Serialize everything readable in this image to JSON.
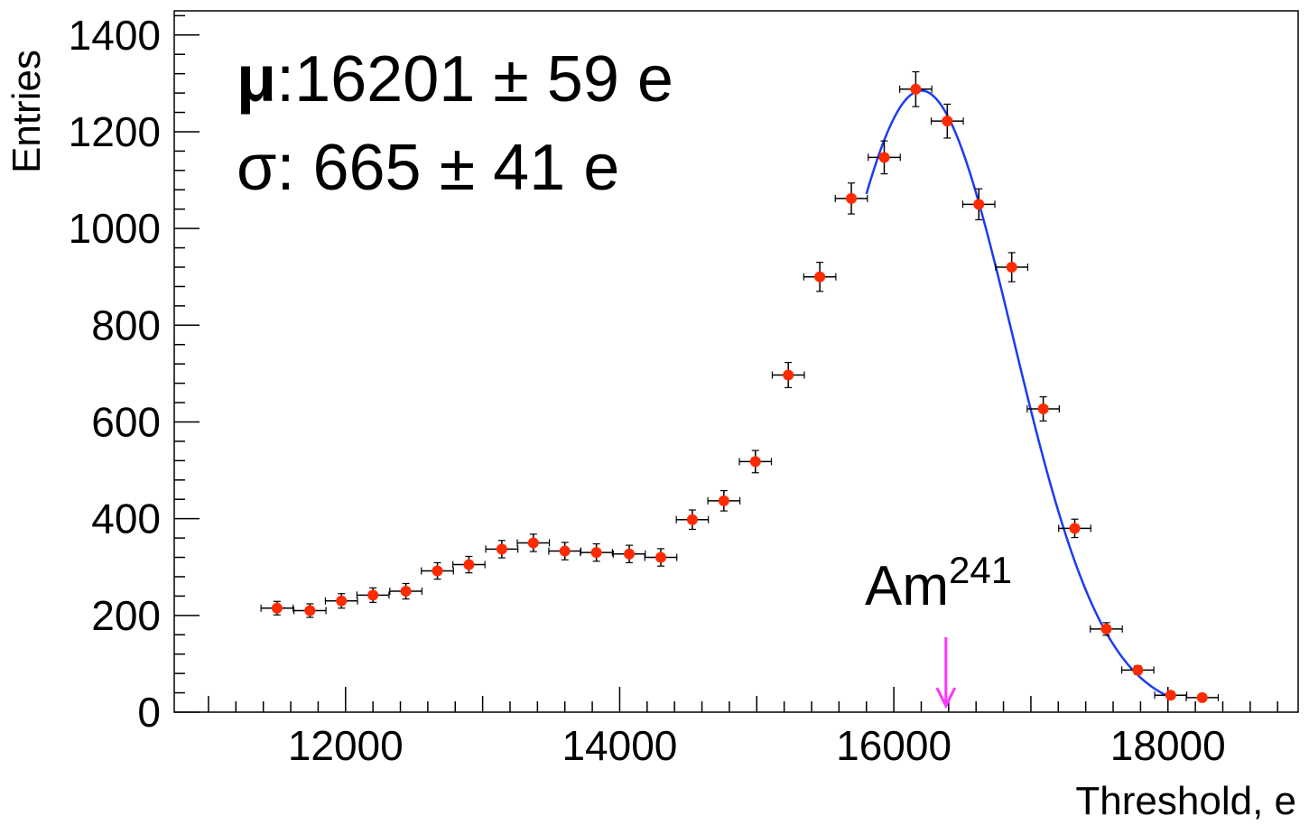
{
  "chart_data": {
    "type": "scatter",
    "xlabel": "Threshold, e",
    "ylabel": "Entries",
    "xlim": [
      10750,
      18950
    ],
    "ylim": [
      0,
      1450
    ],
    "x_ticks": [
      12000,
      14000,
      16000,
      18000
    ],
    "y_ticks": [
      0,
      200,
      400,
      600,
      800,
      1000,
      1200,
      1400
    ],
    "grid": false,
    "colors": {
      "points": "#ff2a00",
      "fit": "#1a3cf0",
      "arrow": "#ff33ff",
      "error_bars": "#000000"
    },
    "bin_half_width": 117,
    "series": [
      {
        "x": [
          11500,
          11740,
          11970,
          12200,
          12440,
          12670,
          12900,
          13140,
          13370,
          13600,
          13830,
          14070,
          14300,
          14530,
          14760,
          14990,
          15230,
          15460,
          15690,
          15930,
          16160,
          16390,
          16620,
          16860,
          17090,
          17320,
          17550,
          17780,
          18020,
          18250
        ],
        "y": [
          215,
          210,
          230,
          242,
          250,
          292,
          305,
          337,
          350,
          333,
          330,
          327,
          320,
          398,
          437,
          518,
          697,
          900,
          1062,
          1147,
          1288,
          1222,
          1050,
          920,
          627,
          380,
          172,
          87,
          35,
          30
        ],
        "yerr": [
          14,
          14,
          15,
          15,
          16,
          17,
          17,
          18,
          18,
          18,
          18,
          18,
          18,
          20,
          21,
          23,
          26,
          30,
          32,
          34,
          36,
          35,
          32,
          30,
          25,
          19,
          13,
          9,
          6,
          5
        ]
      }
    ],
    "fit": {
      "function": "gaussian",
      "mu": 16201,
      "sigma": 665,
      "amplitude": 1285,
      "x_range": [
        15800,
        18000
      ]
    },
    "stats": {
      "mu_label": "μ",
      "mu_text": ":16201 ± 59 e",
      "sigma_text": "σ: 665 ± 41 e"
    },
    "annotation": {
      "text": "Am",
      "sup": "241",
      "x": 16380
    }
  }
}
